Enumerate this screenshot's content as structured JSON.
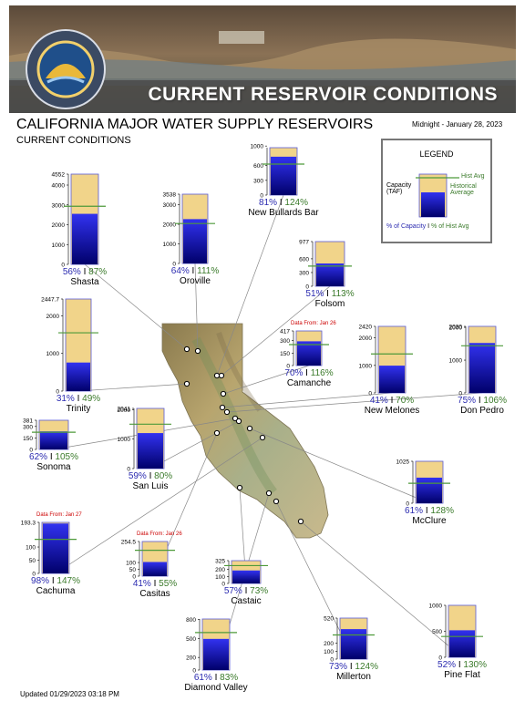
{
  "banner": {
    "title": "CURRENT RESERVOIR CONDITIONS",
    "seal_text_top": "DEPARTMENT OF WATER RESOURCES",
    "seal_text_bottom": "STATE OF CALIFORNIA"
  },
  "header": {
    "title": "CALIFORNIA MAJOR WATER SUPPLY RESERVOIRS",
    "subtitle": "CURRENT CONDITIONS",
    "date": "Midnight - January 28, 2023"
  },
  "footer": {
    "updated": "Updated 01/29/2023 03:18 PM"
  },
  "legend": {
    "title": "LEGEND",
    "capacity_label": "Capacity (TAF)",
    "hist_avg_label": "Hist Avg",
    "historical_average_label": "Historical Average",
    "pct_capacity_label": "% of Capacity",
    "sep": "I",
    "pct_hist_label": "% of Hist Avg"
  },
  "colors": {
    "capacity_fill": "#f1d48a",
    "capacity_border": "#5b5bd6",
    "storage_top": "#3232f0",
    "storage_bottom": "#00006a",
    "hist_line": "#4e9a3a",
    "cap_text": "#2b2bb0",
    "hist_text": "#3a7a2a",
    "data_from_text": "#cc0000"
  },
  "chart_data": {
    "type": "bar",
    "title": "CALIFORNIA MAJOR WATER SUPPLY RESERVOIRS",
    "unit": "TAF",
    "reservoirs": [
      {
        "name": "Shasta",
        "capacity": 4552,
        "storage": 2549,
        "hist_avg": 2930,
        "pct_capacity": "56%",
        "pct_hist": "87%",
        "ticks": [
          "4552",
          "4000",
          "3000",
          "2000",
          "1000",
          "0"
        ],
        "tick_values": [
          4552,
          4000,
          3000,
          2000,
          1000,
          0
        ],
        "data_from": ""
      },
      {
        "name": "Oroville",
        "capacity": 3538,
        "storage": 2264,
        "hist_avg": 2040,
        "pct_capacity": "64%",
        "pct_hist": "111%",
        "ticks": [
          "3538",
          "3000",
          "2000",
          "1000",
          "0"
        ],
        "tick_values": [
          3538,
          3000,
          2000,
          1000,
          0
        ],
        "data_from": ""
      },
      {
        "name": "New Bullards Bar",
        "capacity": 966,
        "storage": 782,
        "hist_avg": 631,
        "pct_capacity": "81%",
        "pct_hist": "124%",
        "ticks": [
          "1000",
          "600",
          "300",
          "0"
        ],
        "tick_values": [
          1000,
          600,
          300,
          0
        ],
        "data_from": ""
      },
      {
        "name": "Folsom",
        "capacity": 977,
        "storage": 498,
        "hist_avg": 441,
        "pct_capacity": "51%",
        "pct_hist": "113%",
        "ticks": [
          "977",
          "600",
          "300",
          "0"
        ],
        "tick_values": [
          977,
          600,
          300,
          0
        ],
        "data_from": ""
      },
      {
        "name": "Trinity",
        "capacity": 2447.7,
        "storage": 759,
        "hist_avg": 1549,
        "pct_capacity": "31%",
        "pct_hist": "49%",
        "ticks": [
          "2447.7",
          "2000",
          "1000",
          "0"
        ],
        "tick_values": [
          2447.7,
          2000,
          1000,
          0
        ],
        "data_from": ""
      },
      {
        "name": "Camanche",
        "capacity": 417,
        "storage": 292,
        "hist_avg": 252,
        "pct_capacity": "70%",
        "pct_hist": "116%",
        "ticks": [
          "417",
          "300",
          "150",
          "0"
        ],
        "tick_values": [
          417,
          300,
          150,
          0
        ],
        "data_from": "Data From: Jan 26"
      },
      {
        "name": "New Melones",
        "capacity": 2420,
        "storage": 992,
        "hist_avg": 1417,
        "pct_capacity": "41%",
        "pct_hist": "70%",
        "ticks": [
          "2420",
          "2000",
          "1000",
          "0"
        ],
        "tick_values": [
          2420,
          2000,
          1000,
          0
        ],
        "data_from": ""
      },
      {
        "name": "Don Pedro",
        "capacity": 2030,
        "storage": 1523,
        "hist_avg": 1437,
        "pct_capacity": "75%",
        "pct_hist": "106%",
        "ticks": [
          "2030",
          "2000",
          "1000",
          "0"
        ],
        "tick_values": [
          2030,
          2000,
          1000,
          0
        ],
        "data_from": ""
      },
      {
        "name": "Sonoma",
        "capacity": 381,
        "storage": 236,
        "hist_avg": 225,
        "pct_capacity": "62%",
        "pct_hist": "105%",
        "ticks": [
          "381",
          "300",
          "150",
          "0"
        ],
        "tick_values": [
          381,
          300,
          150,
          0
        ],
        "data_from": ""
      },
      {
        "name": "San Luis",
        "capacity": 2041,
        "storage": 1204,
        "hist_avg": 1505,
        "pct_capacity": "59%",
        "pct_hist": "80%",
        "ticks": [
          "2041",
          "2000",
          "1000",
          "0"
        ],
        "tick_values": [
          2041,
          2000,
          1000,
          0
        ],
        "data_from": ""
      },
      {
        "name": "McClure",
        "capacity": 1025,
        "storage": 625,
        "hist_avg": 488,
        "pct_capacity": "61%",
        "pct_hist": "128%",
        "ticks": [
          "1025",
          "0"
        ],
        "tick_values": [
          1025,
          0
        ],
        "data_from": ""
      },
      {
        "name": "Cachuma",
        "capacity": 193.3,
        "storage": 189,
        "hist_avg": 129,
        "pct_capacity": "98%",
        "pct_hist": "147%",
        "ticks": [
          "193.3",
          "100",
          "50",
          "0"
        ],
        "tick_values": [
          193.3,
          100,
          50,
          0
        ],
        "data_from": "Data From: Jan 27"
      },
      {
        "name": "Casitas",
        "capacity": 254.5,
        "storage": 104,
        "hist_avg": 190,
        "pct_capacity": "41%",
        "pct_hist": "55%",
        "ticks": [
          "254.5",
          "100",
          "50",
          "0"
        ],
        "tick_values": [
          254.5,
          100,
          50,
          0
        ],
        "data_from": "Data From: Jan 26"
      },
      {
        "name": "Castaic",
        "capacity": 325,
        "storage": 185,
        "hist_avg": 254,
        "pct_capacity": "57%",
        "pct_hist": "73%",
        "ticks": [
          "325",
          "200",
          "100",
          "0"
        ],
        "tick_values": [
          325,
          200,
          100,
          0
        ],
        "data_from": ""
      },
      {
        "name": "Diamond Valley",
        "capacity": 810,
        "storage": 494,
        "hist_avg": 595,
        "pct_capacity": "61%",
        "pct_hist": "83%",
        "ticks": [
          "800",
          "500",
          "200",
          "0"
        ],
        "tick_values": [
          800,
          500,
          200,
          0
        ],
        "data_from": ""
      },
      {
        "name": "Millerton",
        "capacity": 520,
        "storage": 380,
        "hist_avg": 306,
        "pct_capacity": "73%",
        "pct_hist": "124%",
        "ticks": [
          "520",
          "200",
          "100",
          "0"
        ],
        "tick_values": [
          520,
          200,
          100,
          0
        ],
        "data_from": ""
      },
      {
        "name": "Pine Flat",
        "capacity": 1000,
        "storage": 520,
        "hist_avg": 400,
        "pct_capacity": "52%",
        "pct_hist": "130%",
        "ticks": [
          "1000",
          "500",
          "0"
        ],
        "tick_values": [
          1000,
          500,
          0
        ],
        "data_from": ""
      }
    ]
  }
}
